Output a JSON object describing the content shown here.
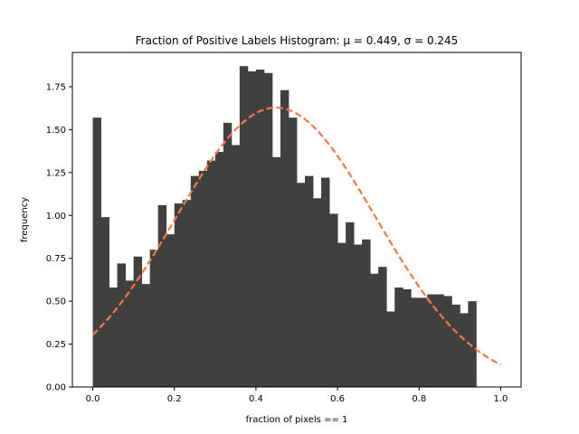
{
  "chart_data": {
    "type": "bar",
    "title": "Fraction of Positive Labels Histogram: μ = 0.449, σ = 0.245",
    "xlabel": "fraction of pixels == 1",
    "ylabel": "frequency",
    "xlim": [
      -0.05,
      1.05
    ],
    "ylim": [
      0,
      1.95
    ],
    "xticks": [
      0.0,
      0.2,
      0.4,
      0.6,
      0.8,
      1.0
    ],
    "xtick_labels": [
      "0.0",
      "0.2",
      "0.4",
      "0.6",
      "0.8",
      "1.0"
    ],
    "yticks": [
      0.0,
      0.25,
      0.5,
      0.75,
      1.0,
      1.25,
      1.5,
      1.75
    ],
    "ytick_labels": [
      "0.00",
      "0.25",
      "0.50",
      "0.75",
      "1.00",
      "1.25",
      "1.50",
      "1.75"
    ],
    "grid": false,
    "bar_color": "#404040",
    "curve_color": "#f4774a",
    "histogram": {
      "bin_start": 0.0,
      "bin_width": 0.02,
      "values": [
        1.57,
        0.99,
        0.58,
        0.72,
        0.62,
        0.76,
        0.6,
        0.8,
        1.06,
        0.89,
        1.07,
        1.09,
        1.23,
        1.26,
        1.32,
        1.37,
        1.54,
        1.41,
        1.87,
        1.84,
        1.85,
        1.83,
        1.34,
        1.73,
        1.57,
        1.19,
        1.23,
        1.1,
        1.22,
        1.01,
        0.84,
        0.96,
        0.83,
        0.86,
        0.66,
        0.7,
        0.44,
        0.58,
        0.57,
        0.52,
        0.52,
        0.54,
        0.54,
        0.53,
        0.48,
        0.43,
        0.5
      ]
    },
    "normal_fit": {
      "mu": 0.449,
      "sigma": 0.245,
      "x_range": [
        0.0,
        1.0
      ],
      "style": "dashed"
    }
  }
}
